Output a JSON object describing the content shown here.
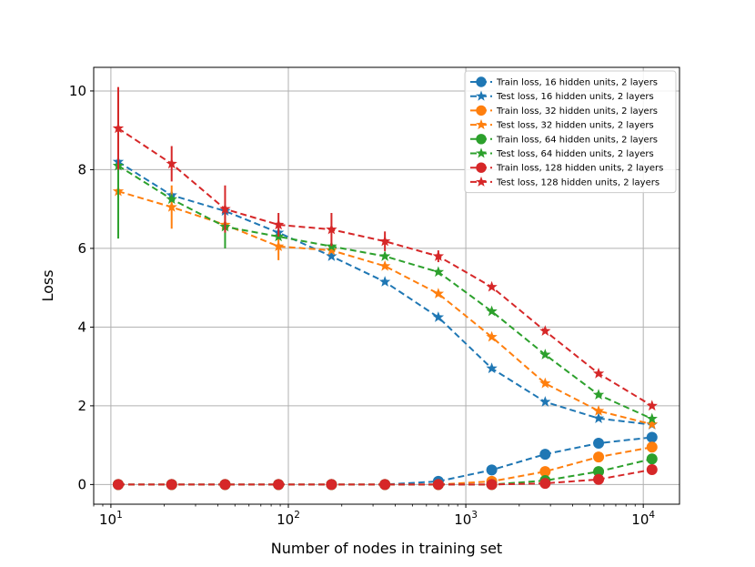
{
  "chart_data": {
    "type": "line",
    "title": "",
    "xlabel": "Number of nodes in training set",
    "ylabel": "Loss",
    "xscale": "log",
    "xlim": [
      8,
      16000
    ],
    "ylim": [
      -0.5,
      10.6
    ],
    "grid": true,
    "legend_position": "top-right",
    "x": [
      11,
      22,
      44,
      88,
      175,
      350,
      700,
      1400,
      2800,
      5600,
      11200
    ],
    "xticks": [
      {
        "value": 10,
        "base": "10",
        "exp": "1"
      },
      {
        "value": 100,
        "base": "10",
        "exp": "2"
      },
      {
        "value": 1000,
        "base": "10",
        "exp": "3"
      },
      {
        "value": 10000,
        "base": "10",
        "exp": "4"
      }
    ],
    "yticks": [
      {
        "value": 0,
        "label": "0"
      },
      {
        "value": 2,
        "label": "2"
      },
      {
        "value": 4,
        "label": "4"
      },
      {
        "value": 6,
        "label": "6"
      },
      {
        "value": 8,
        "label": "8"
      },
      {
        "value": 10,
        "label": "10"
      }
    ],
    "series": [
      {
        "name": "Train loss, 16 hidden units, 2 layers",
        "color": "#1f77b4",
        "marker": "circle",
        "values": [
          0,
          0,
          0,
          0,
          0,
          0,
          0.08,
          0.37,
          0.77,
          1.05,
          1.2
        ]
      },
      {
        "name": "Test loss, 16 hidden units, 2 layers",
        "color": "#1f77b4",
        "marker": "star",
        "values": [
          8.2,
          7.35,
          6.95,
          6.4,
          5.8,
          5.15,
          4.25,
          2.95,
          2.1,
          1.68,
          1.52
        ],
        "err": [
          0,
          0,
          0,
          0,
          0,
          0,
          0,
          0,
          0,
          0,
          0
        ]
      },
      {
        "name": "Train loss, 32 hidden units, 2 layers",
        "color": "#ff7f0e",
        "marker": "circle",
        "values": [
          0,
          0,
          0,
          0,
          0,
          0,
          0,
          0.08,
          0.33,
          0.7,
          0.95
        ]
      },
      {
        "name": "Test loss, 32 hidden units, 2 layers",
        "color": "#ff7f0e",
        "marker": "star",
        "values": [
          7.45,
          7.05,
          6.6,
          6.05,
          5.95,
          5.55,
          4.85,
          3.75,
          2.57,
          1.87,
          1.53
        ],
        "err": [
          0,
          0.55,
          0,
          0.35,
          0,
          0,
          0,
          0,
          0,
          0,
          0
        ]
      },
      {
        "name": "Train loss, 64 hidden units, 2 layers",
        "color": "#2ca02c",
        "marker": "circle",
        "values": [
          0,
          0,
          0,
          0,
          0,
          0,
          0,
          0,
          0.1,
          0.33,
          0.65
        ]
      },
      {
        "name": "Test loss, 64 hidden units, 2 layers",
        "color": "#2ca02c",
        "marker": "star",
        "values": [
          8.1,
          7.25,
          6.55,
          6.3,
          6.05,
          5.8,
          5.4,
          4.4,
          3.3,
          2.28,
          1.67
        ],
        "err": [
          1.85,
          0,
          0.55,
          0,
          0,
          0,
          0,
          0,
          0,
          0,
          0
        ]
      },
      {
        "name": "Train loss, 128 hidden units, 2 layers",
        "color": "#d62728",
        "marker": "circle",
        "values": [
          0,
          0,
          0,
          0,
          0,
          0,
          0,
          0,
          0.03,
          0.13,
          0.38
        ]
      },
      {
        "name": "Test loss, 128 hidden units, 2 layers",
        "color": "#d62728",
        "marker": "star",
        "values": [
          9.05,
          8.15,
          7.0,
          6.6,
          6.48,
          6.18,
          5.8,
          5.02,
          3.9,
          2.82,
          2.0
        ],
        "err": [
          1.05,
          0.45,
          0.6,
          0.3,
          0.42,
          0.25,
          0.15,
          0,
          0,
          0,
          0
        ]
      }
    ]
  }
}
